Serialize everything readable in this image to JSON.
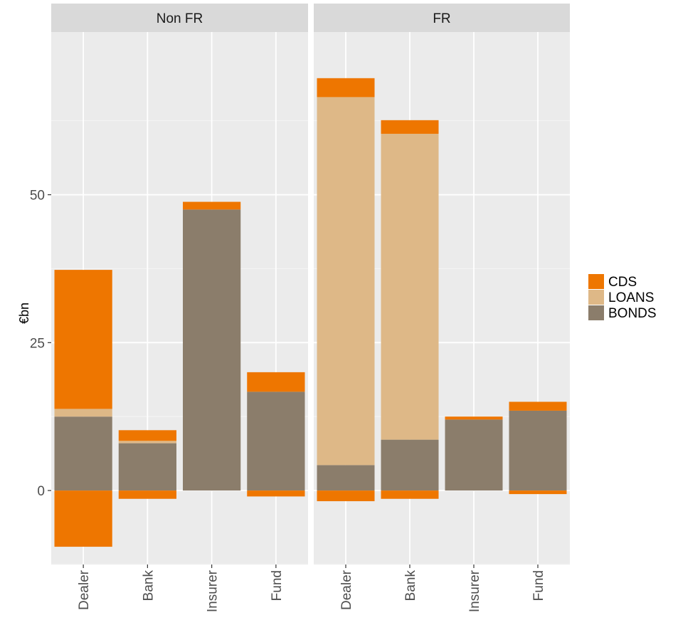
{
  "chart_data": {
    "type": "bar",
    "stacked": true,
    "facet_labels": [
      "Non FR",
      "FR"
    ],
    "categories": [
      "Dealer",
      "Bank",
      "Insurer",
      "Fund"
    ],
    "ylabel": "€bn",
    "xlabel": "",
    "ylim": [
      -12.5,
      77.5
    ],
    "y_ticks": [
      0,
      25,
      50
    ],
    "grid": true,
    "legend_position": "right",
    "legend": [
      {
        "name": "CDS",
        "color": "#ee7600"
      },
      {
        "name": "LOANS",
        "color": "#deb887"
      },
      {
        "name": "BONDS",
        "color": "#8b7d6b"
      }
    ],
    "facets": [
      {
        "label": "Non FR",
        "bonds": [
          12.5,
          8.0,
          47.5,
          16.7
        ],
        "loans": [
          1.3,
          0.4,
          0.0,
          0.0
        ],
        "cds_positive": [
          23.5,
          1.8,
          1.3,
          3.3
        ],
        "cds_negative": [
          -9.5,
          -1.4,
          0.0,
          -1.0
        ]
      },
      {
        "label": "FR",
        "bonds": [
          4.3,
          8.6,
          12.0,
          13.5
        ],
        "loans": [
          62.2,
          51.7,
          0.0,
          0.0
        ],
        "cds_positive": [
          3.2,
          2.3,
          0.5,
          1.5
        ],
        "cds_negative": [
          -1.8,
          -1.4,
          0.0,
          -0.6
        ]
      }
    ]
  }
}
